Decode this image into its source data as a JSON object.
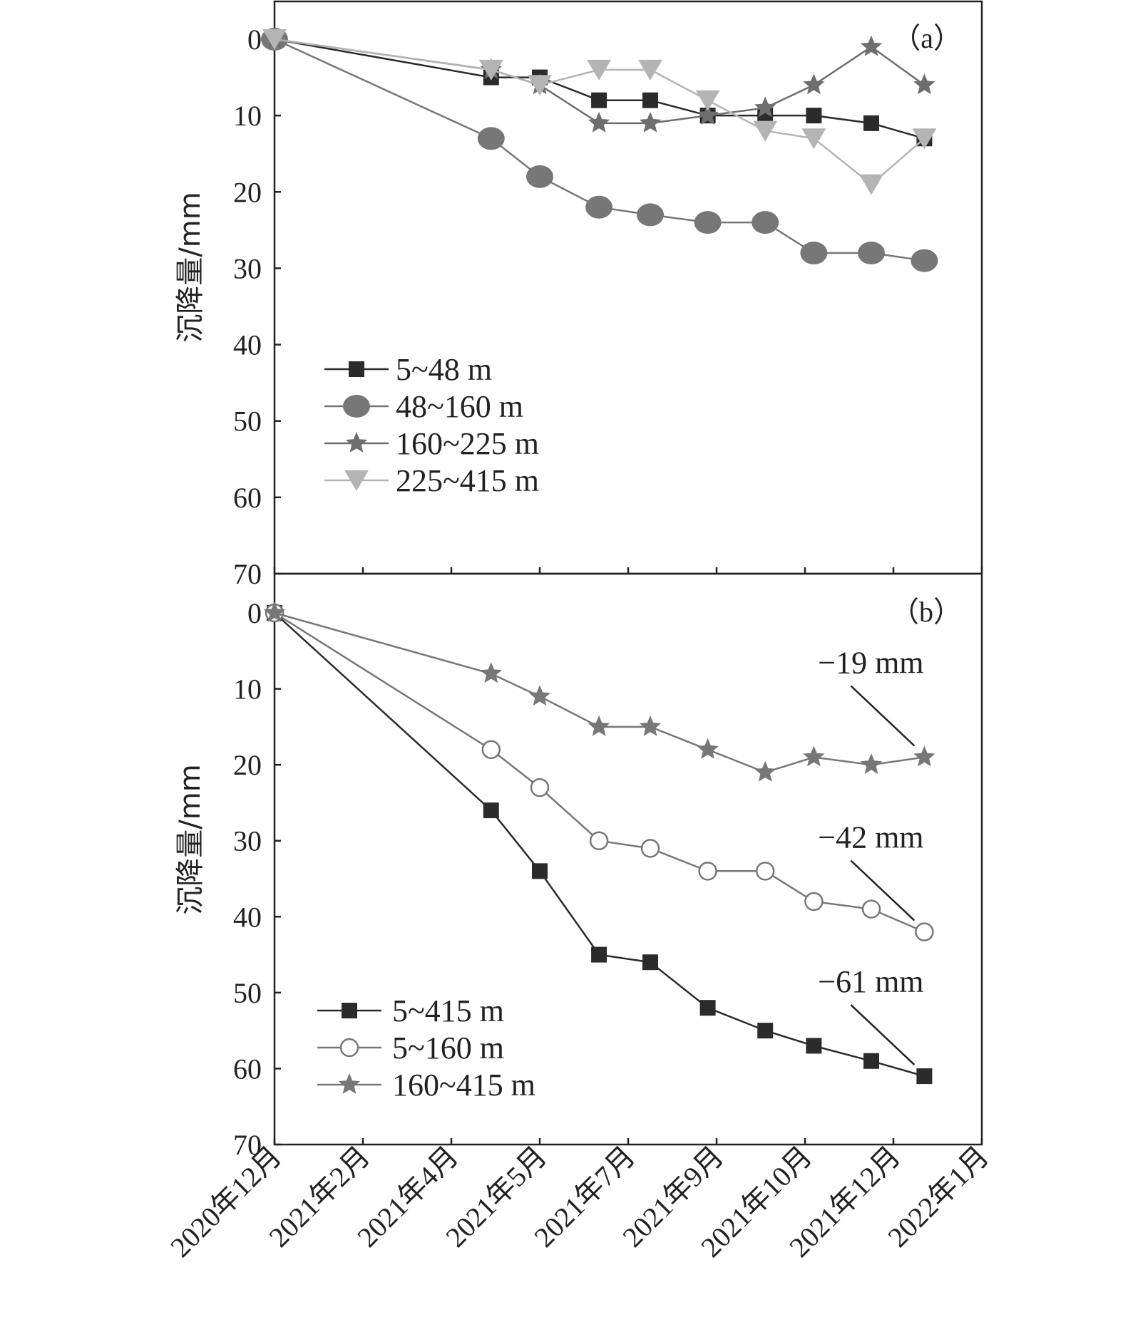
{
  "colors": {
    "black": "#2b2b2b",
    "dark_gray": "#6e6e6e",
    "mid_gray": "#777777",
    "light_gray": "#b4b4b4"
  },
  "x_categories": [
    "2020年12月",
    "2021年2月",
    "2021年4月",
    "2021年5月",
    "2021年7月",
    "2021年9月",
    "2021年10月",
    "2021年12月",
    "2022年1月"
  ],
  "chart_data": [
    {
      "type": "line",
      "panel_label": "（a）",
      "ylabel": "沉降量/mm",
      "ylim": [
        0,
        70
      ],
      "y_inverted": true,
      "y_ticks": [
        0,
        10,
        20,
        30,
        40,
        50,
        60,
        70
      ],
      "x_index": [
        0,
        2.45,
        3.0,
        3.67,
        4.25,
        4.9,
        5.55,
        6.1,
        6.75,
        7.35
      ],
      "legend_position": "lower-left",
      "series": [
        {
          "name": "5~48 m",
          "marker": "square",
          "color": "#2b2b2b",
          "values": [
            0,
            5,
            5,
            8,
            8,
            10,
            10,
            10,
            11,
            13
          ]
        },
        {
          "name": "48~160 m",
          "marker": "circle-filled",
          "color": "#777777",
          "values": [
            0,
            13,
            18,
            22,
            23,
            24,
            24,
            28,
            28,
            29
          ]
        },
        {
          "name": "160~225 m",
          "marker": "star",
          "color": "#6e6e6e",
          "values": [
            0,
            4,
            6,
            11,
            11,
            10,
            9,
            6,
            1,
            6
          ]
        },
        {
          "name": "225~415 m",
          "marker": "triangle-down",
          "color": "#b4b4b4",
          "values": [
            0,
            4,
            6,
            4,
            4,
            8,
            12,
            13,
            19,
            13
          ]
        }
      ]
    },
    {
      "type": "line",
      "panel_label": "（b）",
      "ylabel": "沉降量/mm",
      "ylim": [
        0,
        70
      ],
      "y_inverted": true,
      "y_ticks": [
        0,
        10,
        20,
        30,
        40,
        50,
        60,
        70
      ],
      "x_index": [
        0,
        2.45,
        3.0,
        3.67,
        4.25,
        4.9,
        5.55,
        6.1,
        6.75,
        7.35
      ],
      "legend_position": "lower-left",
      "series": [
        {
          "name": "5~415 m",
          "marker": "square",
          "color": "#2b2b2b",
          "values": [
            0,
            26,
            34,
            45,
            46,
            52,
            55,
            57,
            59,
            61
          ]
        },
        {
          "name": "5~160 m",
          "marker": "circle-open",
          "color": "#777777",
          "values": [
            0,
            18,
            23,
            30,
            31,
            34,
            34,
            38,
            39,
            42
          ]
        },
        {
          "name": "160~415 m",
          "marker": "star",
          "color": "#777777",
          "values": [
            0,
            8,
            11,
            15,
            15,
            18,
            21,
            19,
            20,
            19
          ]
        }
      ],
      "annotations": [
        {
          "text": "−19 mm",
          "series": "160~415 m"
        },
        {
          "text": "−42 mm",
          "series": "5~160 m"
        },
        {
          "text": "−61 mm",
          "series": "5~415 m"
        }
      ]
    }
  ]
}
